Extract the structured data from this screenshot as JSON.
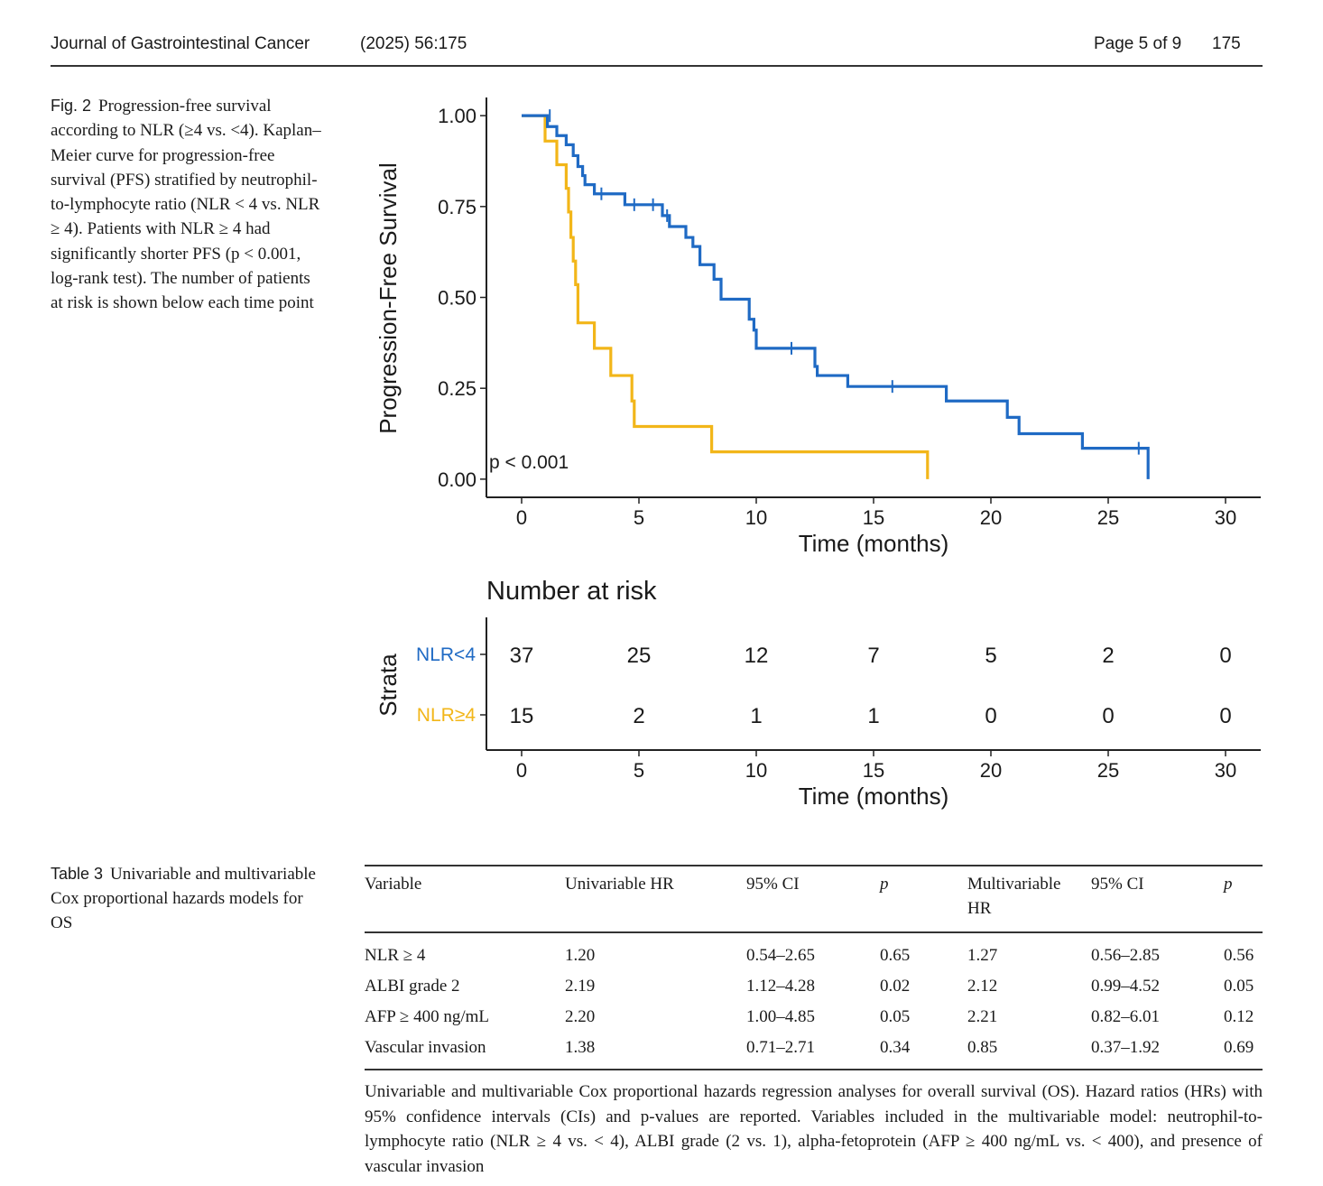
{
  "header": {
    "journal": "Journal of Gastrointestinal Cancer",
    "issue": "(2025) 56:175",
    "page": "Page 5 of 9",
    "article_number": "175"
  },
  "figure": {
    "label": "Fig. 2",
    "caption": "Progression-free survival according to NLR (≥4 vs. <4). Kaplan–Meier curve for progression-free survival (PFS) stratified by neutrophil-to-lymphocyte ratio (NLR < 4 vs. NLR ≥ 4). Patients with NLR ≥ 4 had significantly shorter PFS (p < 0.001, log-rank test). The number of patients at risk is shown below each time point"
  },
  "chart_data": {
    "type": "line",
    "subtype": "kaplan-meier step",
    "ylabel": "Progression-Free Survival",
    "xlabel": "Time (months)",
    "xlim": [
      -1.5,
      31.5
    ],
    "ylim": [
      -0.05,
      1.05
    ],
    "x_ticks": [
      0,
      5,
      10,
      15,
      20,
      25,
      30
    ],
    "y_ticks": [
      0.0,
      0.25,
      0.5,
      0.75,
      1.0
    ],
    "y_tick_labels": [
      "0.00",
      "0.25",
      "0.50",
      "0.75",
      "1.00"
    ],
    "p_value_text": "p < 0.001",
    "series": [
      {
        "name": "NLR<4",
        "color": "#1f6ac4",
        "steps": [
          [
            0,
            1.0
          ],
          [
            1.1,
            0.97
          ],
          [
            1.5,
            0.945
          ],
          [
            1.9,
            0.92
          ],
          [
            2.2,
            0.89
          ],
          [
            2.4,
            0.86
          ],
          [
            2.6,
            0.835
          ],
          [
            2.7,
            0.81
          ],
          [
            3.1,
            0.785
          ],
          [
            4.4,
            0.755
          ],
          [
            6.0,
            0.725
          ],
          [
            6.3,
            0.695
          ],
          [
            7.0,
            0.665
          ],
          [
            7.3,
            0.64
          ],
          [
            7.6,
            0.59
          ],
          [
            8.2,
            0.55
          ],
          [
            8.5,
            0.495
          ],
          [
            9.7,
            0.44
          ],
          [
            9.9,
            0.41
          ],
          [
            10.0,
            0.36
          ],
          [
            12.5,
            0.31
          ],
          [
            12.6,
            0.285
          ],
          [
            13.9,
            0.255
          ],
          [
            18.1,
            0.215
          ],
          [
            20.7,
            0.17
          ],
          [
            21.2,
            0.125
          ],
          [
            23.9,
            0.085
          ],
          [
            26.7,
            0.0
          ]
        ],
        "end": 26.7,
        "censored": [
          [
            1.2,
            1.0
          ],
          [
            3.4,
            0.785
          ],
          [
            4.8,
            0.755
          ],
          [
            5.6,
            0.755
          ],
          [
            6.2,
            0.725
          ],
          [
            11.5,
            0.36
          ],
          [
            15.8,
            0.255
          ],
          [
            26.3,
            0.085
          ]
        ]
      },
      {
        "name": "NLR≥4",
        "color": "#f2b619",
        "steps": [
          [
            0,
            1.0
          ],
          [
            1.0,
            0.93
          ],
          [
            1.5,
            0.865
          ],
          [
            1.9,
            0.8
          ],
          [
            2.0,
            0.735
          ],
          [
            2.1,
            0.665
          ],
          [
            2.2,
            0.6
          ],
          [
            2.3,
            0.535
          ],
          [
            2.4,
            0.465
          ],
          [
            2.4,
            0.43
          ],
          [
            3.1,
            0.36
          ],
          [
            3.8,
            0.285
          ],
          [
            4.7,
            0.215
          ],
          [
            4.8,
            0.145
          ],
          [
            8.1,
            0.075
          ],
          [
            17.3,
            0.0
          ]
        ],
        "end": 17.3,
        "censored": []
      }
    ],
    "risk_table": {
      "title": "Number at risk",
      "strata_label": "Strata",
      "xlabel": "Time (months)",
      "time_points": [
        0,
        5,
        10,
        15,
        20,
        25,
        30
      ],
      "rows": [
        {
          "label": "NLR<4",
          "color": "#1f6ac4",
          "counts": [
            37,
            25,
            12,
            7,
            5,
            2,
            0
          ]
        },
        {
          "label": "NLR≥4",
          "color": "#f2b619",
          "counts": [
            15,
            2,
            1,
            1,
            0,
            0,
            0
          ]
        }
      ]
    }
  },
  "table": {
    "label": "Table 3",
    "caption": "Univariable and multivariable Cox proportional hazards models for OS",
    "headers": [
      "Variable",
      "Univariable HR",
      "95% CI",
      "p",
      "Multivariable HR",
      "95% CI",
      "p"
    ],
    "rows": [
      [
        "NLR ≥ 4",
        "1.20",
        "0.54–2.65",
        "0.65",
        "1.27",
        "0.56–2.85",
        "0.56"
      ],
      [
        "ALBI grade 2",
        "2.19",
        "1.12–4.28",
        "0.02",
        "2.12",
        "0.99–4.52",
        "0.05"
      ],
      [
        "AFP ≥ 400 ng/mL",
        "2.20",
        "1.00–4.85",
        "0.05",
        "2.21",
        "0.82–6.01",
        "0.12"
      ],
      [
        "Vascular invasion",
        "1.38",
        "0.71–2.71",
        "0.34",
        "0.85",
        "0.37–1.92",
        "0.69"
      ]
    ],
    "footnote": "Univariable and multivariable Cox proportional hazards regression analyses for overall survival (OS). Hazard ratios (HRs) with 95% confidence intervals (CIs) and p-values are reported. Variables included in the multivariable model: neutrophil-to-lymphocyte ratio (NLR ≥ 4 vs. < 4), ALBI grade (2 vs. 1), alpha-fetoprotein (AFP ≥ 400 ng/mL vs. < 400), and presence of vascular invasion"
  }
}
